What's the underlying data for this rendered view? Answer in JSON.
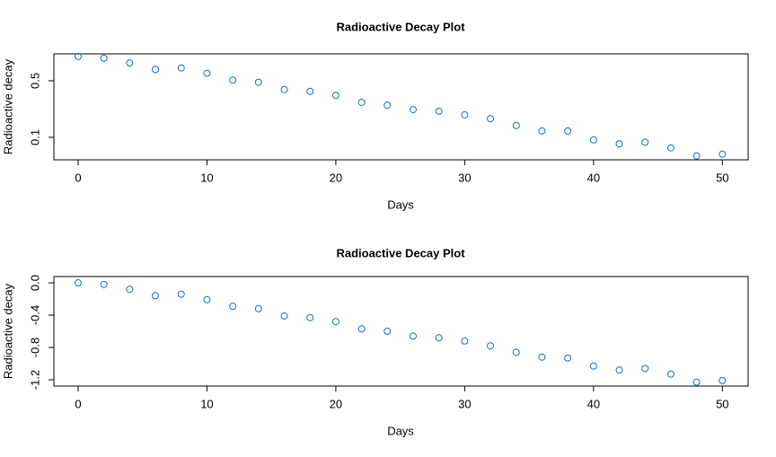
{
  "chart_data": [
    {
      "type": "scatter",
      "title": "Radioactive Decay Plot",
      "x_label": "Days",
      "y_label": "Radioactive decay",
      "log_y": true,
      "color": "#1a6faf",
      "x": [
        0,
        2,
        4,
        6,
        8,
        10,
        12,
        14,
        16,
        18,
        20,
        22,
        24,
        26,
        28,
        30,
        32,
        34,
        36,
        38,
        40,
        42,
        44,
        46,
        48,
        50
      ],
      "values": [
        1.0,
        0.95,
        0.83,
        0.69,
        0.72,
        0.62,
        0.51,
        0.48,
        0.39,
        0.37,
        0.33,
        0.27,
        0.25,
        0.22,
        0.21,
        0.19,
        0.17,
        0.14,
        0.12,
        0.12,
        0.093,
        0.083,
        0.087,
        0.074,
        0.059,
        0.062
      ],
      "xlim": [
        -1.88,
        52.0
      ],
      "xticks": [
        0,
        10,
        20,
        30,
        40,
        50
      ],
      "ylim": [
        0.0527,
        1.076
      ],
      "yticks": [
        0.1,
        0.5
      ]
    },
    {
      "type": "scatter",
      "title": "Radioactive Decay Plot",
      "x_label": "Days",
      "y_label": "Radioactive decay",
      "log_y": false,
      "color": "#1a6faf",
      "x": [
        0,
        2,
        4,
        6,
        8,
        10,
        12,
        14,
        16,
        18,
        20,
        22,
        24,
        26,
        28,
        30,
        32,
        34,
        36,
        38,
        40,
        42,
        44,
        46,
        48,
        50
      ],
      "values": [
        0,
        -0.02,
        -0.08,
        -0.16,
        -0.14,
        -0.21,
        -0.29,
        -0.32,
        -0.41,
        -0.43,
        -0.48,
        -0.57,
        -0.6,
        -0.66,
        -0.68,
        -0.72,
        -0.78,
        -0.86,
        -0.92,
        -0.93,
        -1.03,
        -1.08,
        -1.06,
        -1.13,
        -1.23,
        -1.21
      ],
      "xlim": [
        -1.88,
        52.0
      ],
      "xticks": [
        0,
        10,
        20,
        30,
        40,
        50
      ],
      "ylim": [
        -1.278,
        0.078
      ],
      "yticks": [
        {
          "value": 0,
          "label": "0.0"
        },
        -0.4,
        -0.8,
        -1.2
      ]
    }
  ]
}
